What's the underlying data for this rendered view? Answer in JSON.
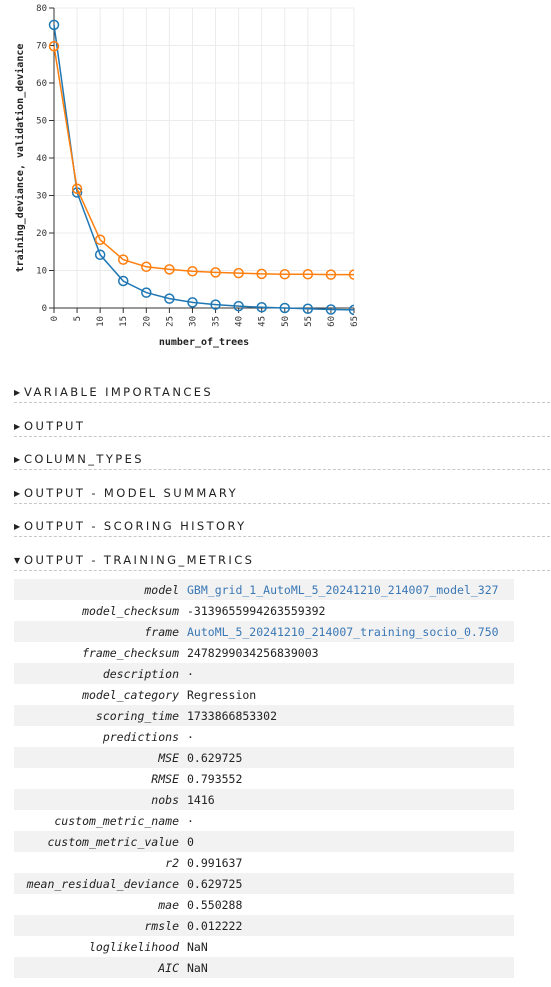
{
  "chart_data": {
    "type": "line",
    "xlabel": "number_of_trees",
    "ylabel": "training_deviance, validation_deviance",
    "xlim": [
      0,
      65
    ],
    "ylim": [
      0,
      80
    ],
    "xticks": [
      0,
      5,
      10,
      15,
      20,
      25,
      30,
      35,
      40,
      45,
      50,
      55,
      60,
      65
    ],
    "yticks": [
      0,
      10,
      20,
      30,
      40,
      50,
      60,
      70,
      80
    ],
    "grid": true,
    "x": [
      0,
      5,
      10,
      15,
      20,
      25,
      30,
      35,
      40,
      45,
      50,
      55,
      60,
      65
    ],
    "series": [
      {
        "name": "training_deviance",
        "color": "#1f77b4",
        "values": [
          75.5,
          30.8,
          14.2,
          7.2,
          4.1,
          2.5,
          1.5,
          0.9,
          0.5,
          0.2,
          0.0,
          -0.2,
          -0.4,
          -0.5
        ]
      },
      {
        "name": "validation_deviance",
        "color": "#ff7f0e",
        "values": [
          69.8,
          31.8,
          18.2,
          12.9,
          11.0,
          10.3,
          9.8,
          9.5,
          9.3,
          9.1,
          9.0,
          9.0,
          8.9,
          8.9
        ]
      }
    ]
  },
  "sections": [
    {
      "label": "VARIABLE IMPORTANCES",
      "expanded": false
    },
    {
      "label": "OUTPUT",
      "expanded": false
    },
    {
      "label": "COLUMN_TYPES",
      "expanded": false
    },
    {
      "label": "OUTPUT - MODEL SUMMARY",
      "expanded": false
    },
    {
      "label": "OUTPUT - SCORING HISTORY",
      "expanded": false
    },
    {
      "label": "OUTPUT - TRAINING_METRICS",
      "expanded": true
    }
  ],
  "metrics": [
    {
      "key": "model",
      "value": "GBM_grid_1_AutoML_5_20241210_214007_model_327",
      "link": true
    },
    {
      "key": "model_checksum",
      "value": "-313965599426355939​2",
      "link": false
    },
    {
      "key": "frame",
      "value": "AutoML_5_20241210_214007_training_socio_0.750",
      "link": true
    },
    {
      "key": "frame_checksum",
      "value": "2478299034256839003",
      "link": false
    },
    {
      "key": "description",
      "value": "·",
      "link": false
    },
    {
      "key": "model_category",
      "value": "Regression",
      "link": false
    },
    {
      "key": "scoring_time",
      "value": "1733866853302",
      "link": false
    },
    {
      "key": "predictions",
      "value": "·",
      "link": false
    },
    {
      "key": "MSE",
      "value": "0.629725",
      "link": false
    },
    {
      "key": "RMSE",
      "value": "0.793552",
      "link": false
    },
    {
      "key": "nobs",
      "value": "1416",
      "link": false
    },
    {
      "key": "custom_metric_name",
      "value": "·",
      "link": false
    },
    {
      "key": "custom_metric_value",
      "value": "0",
      "link": false
    },
    {
      "key": "r2",
      "value": "0.991637",
      "link": false
    },
    {
      "key": "mean_residual_deviance",
      "value": "0.629725",
      "link": false
    },
    {
      "key": "mae",
      "value": "0.550288",
      "link": false
    },
    {
      "key": "rmsle",
      "value": "0.012222",
      "link": false
    },
    {
      "key": "loglikelihood",
      "value": "NaN",
      "link": false
    },
    {
      "key": "AIC",
      "value": "NaN",
      "link": false
    }
  ]
}
